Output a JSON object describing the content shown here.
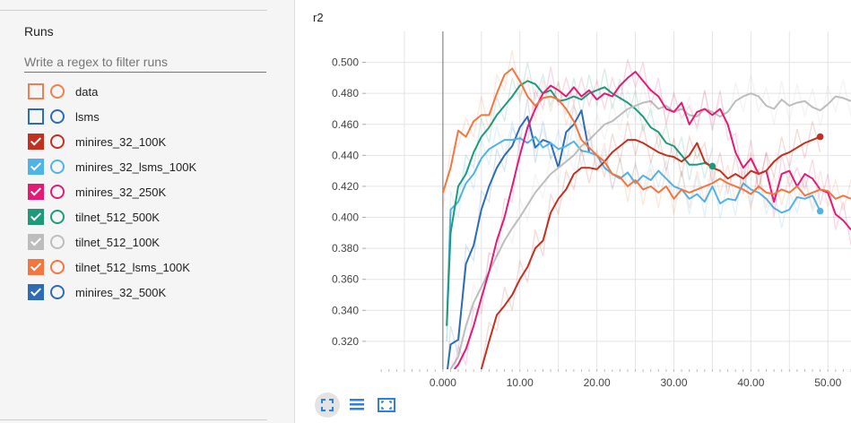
{
  "sidebar": {
    "title": "Runs",
    "filter_placeholder": "Write a regex to filter runs",
    "runs": [
      {
        "label": "data",
        "color": "#f07f50",
        "checked": false
      },
      {
        "label": "lsms",
        "color": "#2b6cb8",
        "checked": false
      },
      {
        "label": "minires_32_100K",
        "color": "#c2301f",
        "checked": true
      },
      {
        "label": "minires_32_lsms_100K",
        "color": "#4fb3e8",
        "checked": true
      },
      {
        "label": "minires_32_250K",
        "color": "#e31b77",
        "checked": true
      },
      {
        "label": "tilnet_512_500K",
        "color": "#1e9a7a",
        "checked": true
      },
      {
        "label": "tilnet_512_100K",
        "color": "#bdbdbd",
        "checked": true
      },
      {
        "label": "tilnet_512_lsms_100K",
        "color": "#f2763f",
        "checked": true
      },
      {
        "label": "minires_32_500K",
        "color": "#2e6bb4",
        "checked": true
      }
    ]
  },
  "toolbar": {
    "icons": [
      "fit-domain-icon",
      "log-scale-icon",
      "expand-chart-icon"
    ]
  },
  "chart_data": {
    "type": "line",
    "title": "r2",
    "xlim": [
      -10,
      53
    ],
    "ylim": [
      0.302,
      0.52
    ],
    "x_ticks": [
      "0.000",
      "10.00",
      "20.00",
      "30.00",
      "40.00",
      "50.00"
    ],
    "x_tick_values": [
      0,
      10,
      20,
      30,
      40,
      50
    ],
    "y_ticks": [
      "0.320",
      "0.340",
      "0.360",
      "0.380",
      "0.400",
      "0.420",
      "0.440",
      "0.460",
      "0.480",
      "0.500"
    ],
    "y_tick_values": [
      0.32,
      0.34,
      0.36,
      0.38,
      0.4,
      0.42,
      0.44,
      0.46,
      0.48,
      0.5
    ],
    "series": [
      {
        "name": "minires_32_500K",
        "color": "#2e6bb4",
        "x": [
          0.6,
          1,
          2,
          3,
          4,
          5,
          6,
          7,
          8,
          9,
          10,
          11,
          12,
          13,
          14,
          15,
          16,
          17,
          18,
          19
        ],
        "y": [
          0.3,
          0.318,
          0.321,
          0.37,
          0.382,
          0.405,
          0.42,
          0.432,
          0.44,
          0.446,
          0.458,
          0.465,
          0.445,
          0.45,
          0.448,
          0.432,
          0.455,
          0.46,
          0.469,
          0.442
        ],
        "end_marker": false
      },
      {
        "name": "minires_32_lsms_100K",
        "color": "#4fb3e8",
        "x": [
          0.5,
          1,
          2,
          3,
          4,
          5,
          6,
          7,
          8,
          9,
          10,
          11,
          12,
          13,
          14,
          15,
          16,
          17,
          18,
          19,
          20,
          21,
          22,
          23,
          24,
          25,
          26,
          27,
          28,
          29,
          30,
          31,
          32,
          33,
          34,
          35,
          36,
          37,
          38,
          39,
          40,
          41,
          42,
          43,
          44,
          45,
          46,
          47,
          48,
          49
        ],
        "y": [
          0.33,
          0.405,
          0.41,
          0.422,
          0.428,
          0.438,
          0.444,
          0.447,
          0.45,
          0.45,
          0.451,
          0.448,
          0.452,
          0.445,
          0.448,
          0.444,
          0.446,
          0.449,
          0.443,
          0.442,
          0.44,
          0.432,
          0.428,
          0.425,
          0.429,
          0.422,
          0.427,
          0.424,
          0.43,
          0.425,
          0.42,
          0.418,
          0.412,
          0.415,
          0.41,
          0.42,
          0.409,
          0.412,
          0.411,
          0.422,
          0.418,
          0.416,
          0.412,
          0.406,
          0.403,
          0.405,
          0.413,
          0.412,
          0.414,
          0.404
        ],
        "end_marker": true
      },
      {
        "name": "tilnet_512_500K",
        "color": "#1e9a7a",
        "x": [
          0.5,
          1,
          2,
          3,
          4,
          5,
          6,
          7,
          8,
          9,
          10,
          11,
          12,
          13,
          14,
          15,
          16,
          17,
          18,
          19,
          20,
          21,
          22,
          23,
          24,
          25,
          26,
          27,
          28,
          29,
          30,
          31,
          32,
          33,
          34,
          35
        ],
        "y": [
          0.33,
          0.39,
          0.42,
          0.428,
          0.442,
          0.452,
          0.458,
          0.466,
          0.472,
          0.478,
          0.485,
          0.488,
          0.486,
          0.48,
          0.482,
          0.475,
          0.476,
          0.478,
          0.476,
          0.48,
          0.482,
          0.484,
          0.48,
          0.477,
          0.474,
          0.47,
          0.465,
          0.458,
          0.455,
          0.448,
          0.446,
          0.44,
          0.434,
          0.434,
          0.435,
          0.433
        ],
        "end_marker": true
      },
      {
        "name": "tilnet_512_100K",
        "color": "#bdbdbd",
        "x": [
          1,
          2,
          3,
          4,
          5,
          6,
          7,
          8,
          9,
          10,
          11,
          12,
          13,
          14,
          15,
          16,
          17,
          18,
          19,
          20,
          21,
          22,
          23,
          24,
          25,
          26,
          27,
          28,
          29,
          30,
          31,
          32,
          33,
          34,
          35,
          36,
          37,
          38,
          39,
          40,
          41,
          42,
          43,
          44,
          45,
          46,
          47,
          48,
          49,
          50,
          51,
          52,
          53
        ],
        "y": [
          0.3,
          0.31,
          0.33,
          0.345,
          0.355,
          0.365,
          0.375,
          0.385,
          0.393,
          0.4,
          0.408,
          0.416,
          0.422,
          0.428,
          0.432,
          0.436,
          0.44,
          0.446,
          0.45,
          0.455,
          0.46,
          0.462,
          0.466,
          0.47,
          0.472,
          0.474,
          0.475,
          0.47,
          0.472,
          0.468,
          0.47,
          0.466,
          0.465,
          0.47,
          0.468,
          0.465,
          0.468,
          0.475,
          0.478,
          0.48,
          0.478,
          0.472,
          0.47,
          0.476,
          0.472,
          0.474,
          0.475,
          0.471,
          0.469,
          0.473,
          0.478,
          0.477,
          0.475
        ],
        "end_marker": false
      },
      {
        "name": "minires_32_250K",
        "color": "#e31b77",
        "x": [
          1.5,
          2,
          3,
          4,
          5,
          6,
          7,
          8,
          9,
          10,
          11,
          12,
          13,
          14,
          15,
          16,
          17,
          18,
          19,
          20,
          21,
          22,
          23,
          24,
          25,
          26,
          27,
          28,
          29,
          30,
          31,
          32,
          33,
          34,
          35,
          36,
          37,
          38,
          39,
          40,
          41,
          42,
          43,
          44,
          45,
          46,
          47,
          48,
          49,
          50,
          51,
          52,
          53
        ],
        "y": [
          0.3,
          0.305,
          0.315,
          0.33,
          0.348,
          0.365,
          0.385,
          0.4,
          0.42,
          0.44,
          0.458,
          0.47,
          0.48,
          0.485,
          0.482,
          0.478,
          0.484,
          0.478,
          0.482,
          0.476,
          0.48,
          0.478,
          0.485,
          0.49,
          0.494,
          0.488,
          0.482,
          0.478,
          0.47,
          0.468,
          0.474,
          0.46,
          0.468,
          0.47,
          0.466,
          0.47,
          0.46,
          0.442,
          0.432,
          0.438,
          0.428,
          0.43,
          0.41,
          0.428,
          0.43,
          0.42,
          0.428,
          0.425,
          0.418,
          0.416,
          0.402,
          0.398,
          0.392
        ],
        "end_marker": false
      },
      {
        "name": "minires_32_100K",
        "color": "#c2301f",
        "x": [
          5,
          6,
          7,
          8,
          9,
          10,
          11,
          12,
          13,
          14,
          15,
          16,
          17,
          18,
          19,
          20,
          21,
          22,
          23,
          24,
          25,
          26,
          27,
          28,
          29,
          30,
          31,
          32,
          33,
          34,
          35,
          36,
          37,
          38,
          39,
          40,
          41,
          42,
          43,
          44,
          45,
          46,
          47,
          48,
          49
        ],
        "y": [
          0.3,
          0.32,
          0.337,
          0.343,
          0.35,
          0.36,
          0.368,
          0.38,
          0.385,
          0.403,
          0.412,
          0.418,
          0.428,
          0.432,
          0.432,
          0.431,
          0.436,
          0.442,
          0.446,
          0.45,
          0.45,
          0.448,
          0.445,
          0.442,
          0.44,
          0.439,
          0.436,
          0.44,
          0.448,
          0.436,
          0.432,
          0.43,
          0.425,
          0.428,
          0.425,
          0.43,
          0.428,
          0.43,
          0.436,
          0.44,
          0.442,
          0.445,
          0.448,
          0.45,
          0.452
        ],
        "end_marker": true
      },
      {
        "name": "tilnet_512_lsms_100K",
        "color": "#f2763f",
        "x": [
          0,
          1,
          2,
          3,
          4,
          5,
          6,
          7,
          8,
          9,
          10,
          11,
          12,
          13,
          14,
          15,
          16,
          17,
          18,
          19,
          20,
          21,
          22,
          23,
          24,
          25,
          26,
          27,
          28,
          29,
          30,
          31,
          32,
          33,
          34,
          35,
          36,
          37,
          38,
          39,
          40,
          41,
          42,
          43,
          44,
          45,
          46,
          47,
          48,
          49,
          50,
          51,
          52,
          53
        ],
        "y": [
          0.416,
          0.432,
          0.456,
          0.452,
          0.462,
          0.466,
          0.466,
          0.48,
          0.492,
          0.496,
          0.488,
          0.478,
          0.472,
          0.477,
          0.478,
          0.476,
          0.47,
          0.462,
          0.45,
          0.445,
          0.44,
          0.436,
          0.428,
          0.426,
          0.42,
          0.424,
          0.418,
          0.42,
          0.416,
          0.42,
          0.412,
          0.418,
          0.416,
          0.418,
          0.42,
          0.422,
          0.425,
          0.422,
          0.42,
          0.418,
          0.415,
          0.42,
          0.416,
          0.415,
          0.418,
          0.416,
          0.42,
          0.414,
          0.416,
          0.418,
          0.417,
          0.412,
          0.414,
          0.412
        ],
        "end_marker": false
      }
    ]
  }
}
